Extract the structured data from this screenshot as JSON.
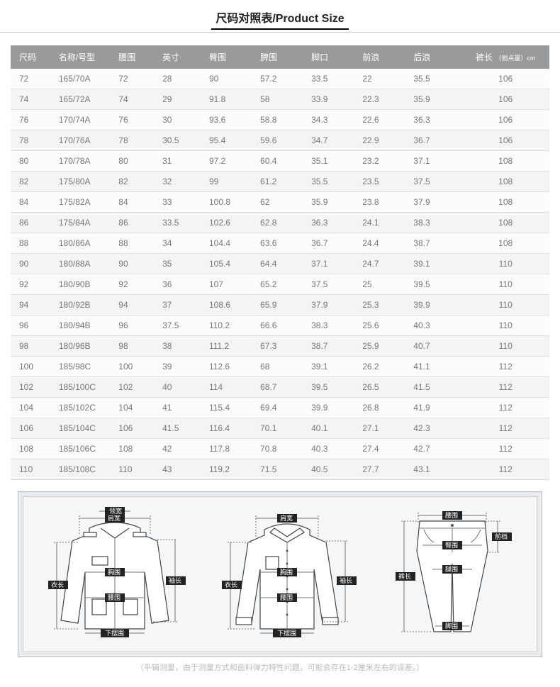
{
  "title": "尺码对照表/Product Size",
  "table": {
    "columns": [
      "尺码",
      "名称/号型",
      "腰围",
      "英寸",
      "臀围",
      "脾围",
      "脚口",
      "前浪",
      "后浪"
    ],
    "last_col": {
      "main": "裤长",
      "sub": "（侧点量）cm"
    },
    "rows": [
      [
        "72",
        "165/70A",
        "72",
        "28",
        "90",
        "57.2",
        "33.5",
        "22",
        "35.5",
        "106"
      ],
      [
        "74",
        "165/72A",
        "74",
        "29",
        "91.8",
        "58",
        "33.9",
        "22.3",
        "35.9",
        "106"
      ],
      [
        "76",
        "170/74A",
        "76",
        "30",
        "93.6",
        "58.8",
        "34.3",
        "22.6",
        "36.3",
        "106"
      ],
      [
        "78",
        "170/76A",
        "78",
        "30.5",
        "95.4",
        "59.6",
        "34.7",
        "22.9",
        "36.7",
        "106"
      ],
      [
        "80",
        "170/78A",
        "80",
        "31",
        "97.2",
        "60.4",
        "35.1",
        "23.2",
        "37.1",
        "108"
      ],
      [
        "82",
        "175/80A",
        "82",
        "32",
        "99",
        "61.2",
        "35.5",
        "23.5",
        "37.5",
        "108"
      ],
      [
        "84",
        "175/82A",
        "84",
        "33",
        "100.8",
        "62",
        "35.9",
        "23.8",
        "37.9",
        "108"
      ],
      [
        "86",
        "175/84A",
        "86",
        "33.5",
        "102.6",
        "62.8",
        "36.3",
        "24.1",
        "38.3",
        "108"
      ],
      [
        "88",
        "180/86A",
        "88",
        "34",
        "104.4",
        "63.6",
        "36.7",
        "24.4",
        "38.7",
        "108"
      ],
      [
        "90",
        "180/88A",
        "90",
        "35",
        "105.4",
        "64.4",
        "37.1",
        "24.7",
        "39.1",
        "110"
      ],
      [
        "92",
        "180/90B",
        "92",
        "36",
        "107",
        "65.2",
        "37.5",
        "25",
        "39.5",
        "110"
      ],
      [
        "94",
        "180/92B",
        "94",
        "37",
        "108.6",
        "65.9",
        "37.9",
        "25.3",
        "39.9",
        "110"
      ],
      [
        "96",
        "180/94B",
        "96",
        "37.5",
        "110.2",
        "66.6",
        "38.3",
        "25.6",
        "40.3",
        "110"
      ],
      [
        "98",
        "180/96B",
        "98",
        "38",
        "111.2",
        "67.3",
        "38.7",
        "25.9",
        "40.7",
        "110"
      ],
      [
        "100",
        "185/98C",
        "100",
        "39",
        "112.6",
        "68",
        "39.1",
        "26.2",
        "41.1",
        "112"
      ],
      [
        "102",
        "185/100C",
        "102",
        "40",
        "114",
        "68.7",
        "39.5",
        "26.5",
        "41.5",
        "112"
      ],
      [
        "104",
        "185/102C",
        "104",
        "41",
        "115.4",
        "69.4",
        "39.9",
        "26.8",
        "41.9",
        "112"
      ],
      [
        "106",
        "185/104C",
        "106",
        "41.5",
        "116.4",
        "70.1",
        "40.1",
        "27.1",
        "42.3",
        "112"
      ],
      [
        "108",
        "185/106C",
        "108",
        "42",
        "117.8",
        "70.8",
        "40.3",
        "27.4",
        "42.7",
        "112"
      ],
      [
        "110",
        "185/108C",
        "110",
        "43",
        "119.2",
        "71.5",
        "40.5",
        "27.7",
        "43.1",
        "112"
      ]
    ],
    "header_bg": "#999a9c",
    "header_fg": "#ffffff",
    "row_even_bg": "#f4f4f4",
    "row_odd_bg": "#fcfcfc",
    "cell_fg": "#777777",
    "border_color": "#dddddd"
  },
  "diagrams": {
    "jacket": {
      "labels": {
        "shoulder": "肩宽",
        "collar": "领宽",
        "chest": "胸围",
        "length": "衣长",
        "waist": "腰围",
        "hem": "下摆围",
        "sleeve": "袖长"
      }
    },
    "shirt": {
      "labels": {
        "shoulder": "肩宽",
        "chest": "胸围",
        "length": "衣长",
        "waist": "腰围",
        "hem": "下摆围",
        "sleeve": "袖长"
      }
    },
    "pants": {
      "labels": {
        "waist": "腰围",
        "rise": "前档",
        "hip": "臀围",
        "thigh": "腿围",
        "length": "裤长",
        "leg_open": "脚围"
      }
    },
    "stroke": "#444444",
    "line": "#777777",
    "label_bg": "#232323",
    "label_fg": "#ffffff",
    "panel_bg": "#f5f6f7",
    "outer_bg": "#e9ecef"
  },
  "footnote": "（平铺测量，由于测量方式和面料弹力特性问题，可能会存在1-2厘米左右的误差。）"
}
